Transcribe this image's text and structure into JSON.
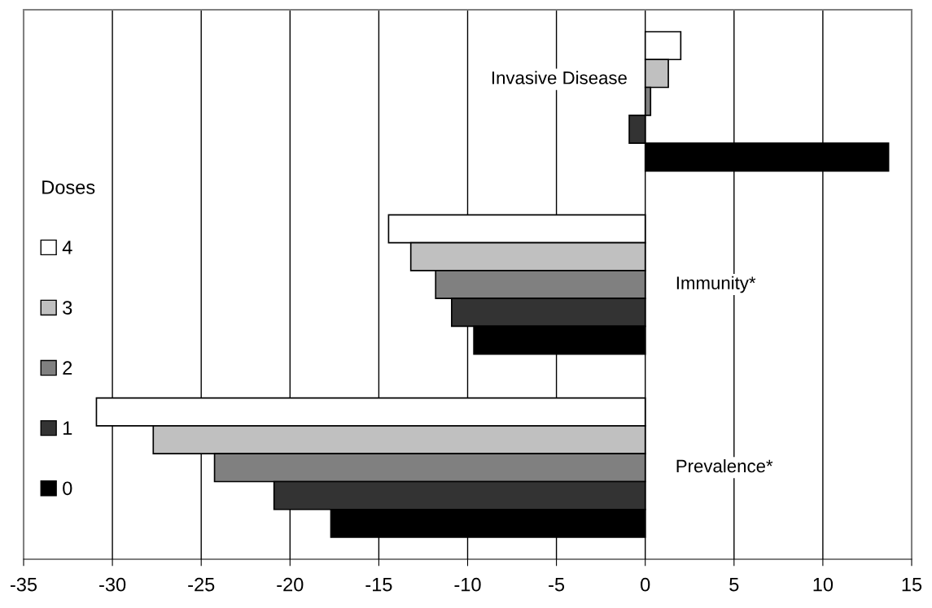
{
  "chart_data": {
    "type": "bar",
    "orientation": "horizontal",
    "categories": [
      "Invasive Disease",
      "Immunity*",
      "Prevalence*"
    ],
    "series": [
      {
        "name": "4",
        "color": "#ffffff",
        "values": [
          2.0,
          -14.45,
          -30.9
        ]
      },
      {
        "name": "3",
        "color": "#c0c0c0",
        "values": [
          1.3,
          -13.2,
          -27.7
        ]
      },
      {
        "name": "2",
        "color": "#808080",
        "values": [
          0.3,
          -11.8,
          -24.25
        ]
      },
      {
        "name": "1",
        "color": "#333333",
        "values": [
          -0.9,
          -10.9,
          -20.9
        ]
      },
      {
        "name": "0",
        "color": "#000000",
        "values": [
          13.7,
          -9.65,
          -17.7
        ]
      }
    ],
    "legend_title": "Doses",
    "legend": "left",
    "xlim": [
      -35,
      15
    ],
    "xticks": [
      -35,
      -30,
      -25,
      -20,
      -15,
      -10,
      -5,
      0,
      5,
      10,
      15
    ],
    "grid": "x"
  }
}
